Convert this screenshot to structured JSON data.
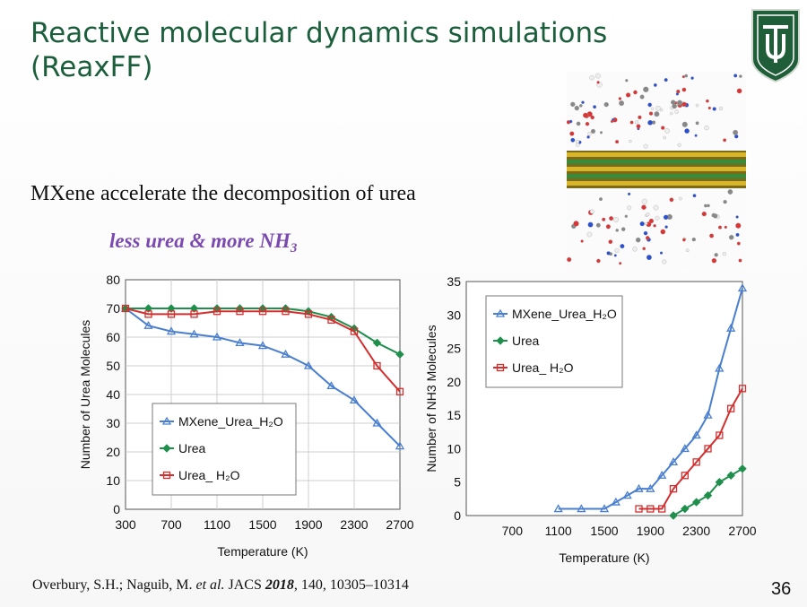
{
  "slide": {
    "title_line1": "Reactive molecular dynamics simulations",
    "title_line2": "(ReaxFF)",
    "subtitle": "MXene accelerate the decomposition of urea",
    "highlight_main": "less urea & more NH",
    "highlight_sub": "3",
    "citation_authors": "Overbury, S.H.; Naguib, M. ",
    "citation_etal": "et al.",
    "citation_journal": " JACS ",
    "citation_year": "2018",
    "citation_rest": ", 140, 10305–10314",
    "page_number": "36",
    "title_color": "#1b5e3b",
    "highlight_color": "#7a4ab0"
  },
  "chart_data": [
    {
      "type": "line",
      "xlabel": "Temperature (K)",
      "ylabel": "Number of Urea Molecules",
      "xlim": [
        300,
        2700
      ],
      "ylim": [
        0,
        80
      ],
      "x_ticks": [
        300,
        700,
        1100,
        1500,
        1900,
        2300,
        2700
      ],
      "y_ticks": [
        0,
        10,
        20,
        30,
        40,
        50,
        60,
        70,
        80
      ],
      "grid": true,
      "legend_position": "center-left",
      "series": [
        {
          "name": "MXene_Urea_H₂O",
          "color": "#4a7fd0",
          "marker": "triangle",
          "x": [
            300,
            500,
            700,
            900,
            1100,
            1300,
            1500,
            1700,
            1900,
            2100,
            2300,
            2500,
            2700
          ],
          "y": [
            70,
            64,
            62,
            61,
            60,
            58,
            57,
            54,
            50,
            43,
            38,
            30,
            22
          ]
        },
        {
          "name": "Urea",
          "color": "#1f8f4c",
          "marker": "diamond",
          "x": [
            300,
            500,
            700,
            900,
            1100,
            1300,
            1500,
            1700,
            1900,
            2100,
            2300,
            2500,
            2700
          ],
          "y": [
            70,
            70,
            70,
            70,
            70,
            70,
            70,
            70,
            69,
            67,
            63,
            58,
            54
          ]
        },
        {
          "name": "Urea_ H₂O",
          "color": "#d32f2f",
          "marker": "square",
          "x": [
            300,
            500,
            700,
            900,
            1100,
            1300,
            1500,
            1700,
            1900,
            2100,
            2300,
            2500,
            2700
          ],
          "y": [
            70,
            68,
            68,
            68,
            69,
            69,
            69,
            69,
            68,
            66,
            62,
            50,
            41
          ]
        }
      ]
    },
    {
      "type": "line",
      "xlabel": "Temperature (K)",
      "ylabel": "Number of NH3 Molecules",
      "xlim": [
        300,
        2700
      ],
      "ylim": [
        0,
        35
      ],
      "x_ticks": [
        700,
        1100,
        1500,
        1900,
        2300,
        2700
      ],
      "y_ticks": [
        0,
        5,
        10,
        15,
        20,
        25,
        30,
        35
      ],
      "grid": false,
      "legend_position": "top-left",
      "series": [
        {
          "name": "MXene_Urea_H₂O",
          "color": "#4a7fd0",
          "marker": "triangle",
          "x": [
            1100,
            1300,
            1500,
            1600,
            1700,
            1800,
            1900,
            2000,
            2100,
            2200,
            2300,
            2400,
            2500,
            2600,
            2700
          ],
          "y": [
            1,
            1,
            1,
            2,
            3,
            4,
            4,
            6,
            8,
            10,
            12,
            15,
            22,
            28,
            34
          ]
        },
        {
          "name": "Urea",
          "color": "#1f8f4c",
          "marker": "diamond",
          "x": [
            2100,
            2200,
            2300,
            2400,
            2500,
            2600,
            2700
          ],
          "y": [
            0,
            1,
            2,
            3,
            5,
            6,
            7
          ]
        },
        {
          "name": "Urea_ H₂O",
          "color": "#d32f2f",
          "marker": "square",
          "x": [
            1800,
            1900,
            2000,
            2100,
            2200,
            2300,
            2400,
            2500,
            2600,
            2700
          ],
          "y": [
            1,
            1,
            1,
            4,
            6,
            8,
            10,
            12,
            16,
            19
          ]
        }
      ]
    }
  ]
}
